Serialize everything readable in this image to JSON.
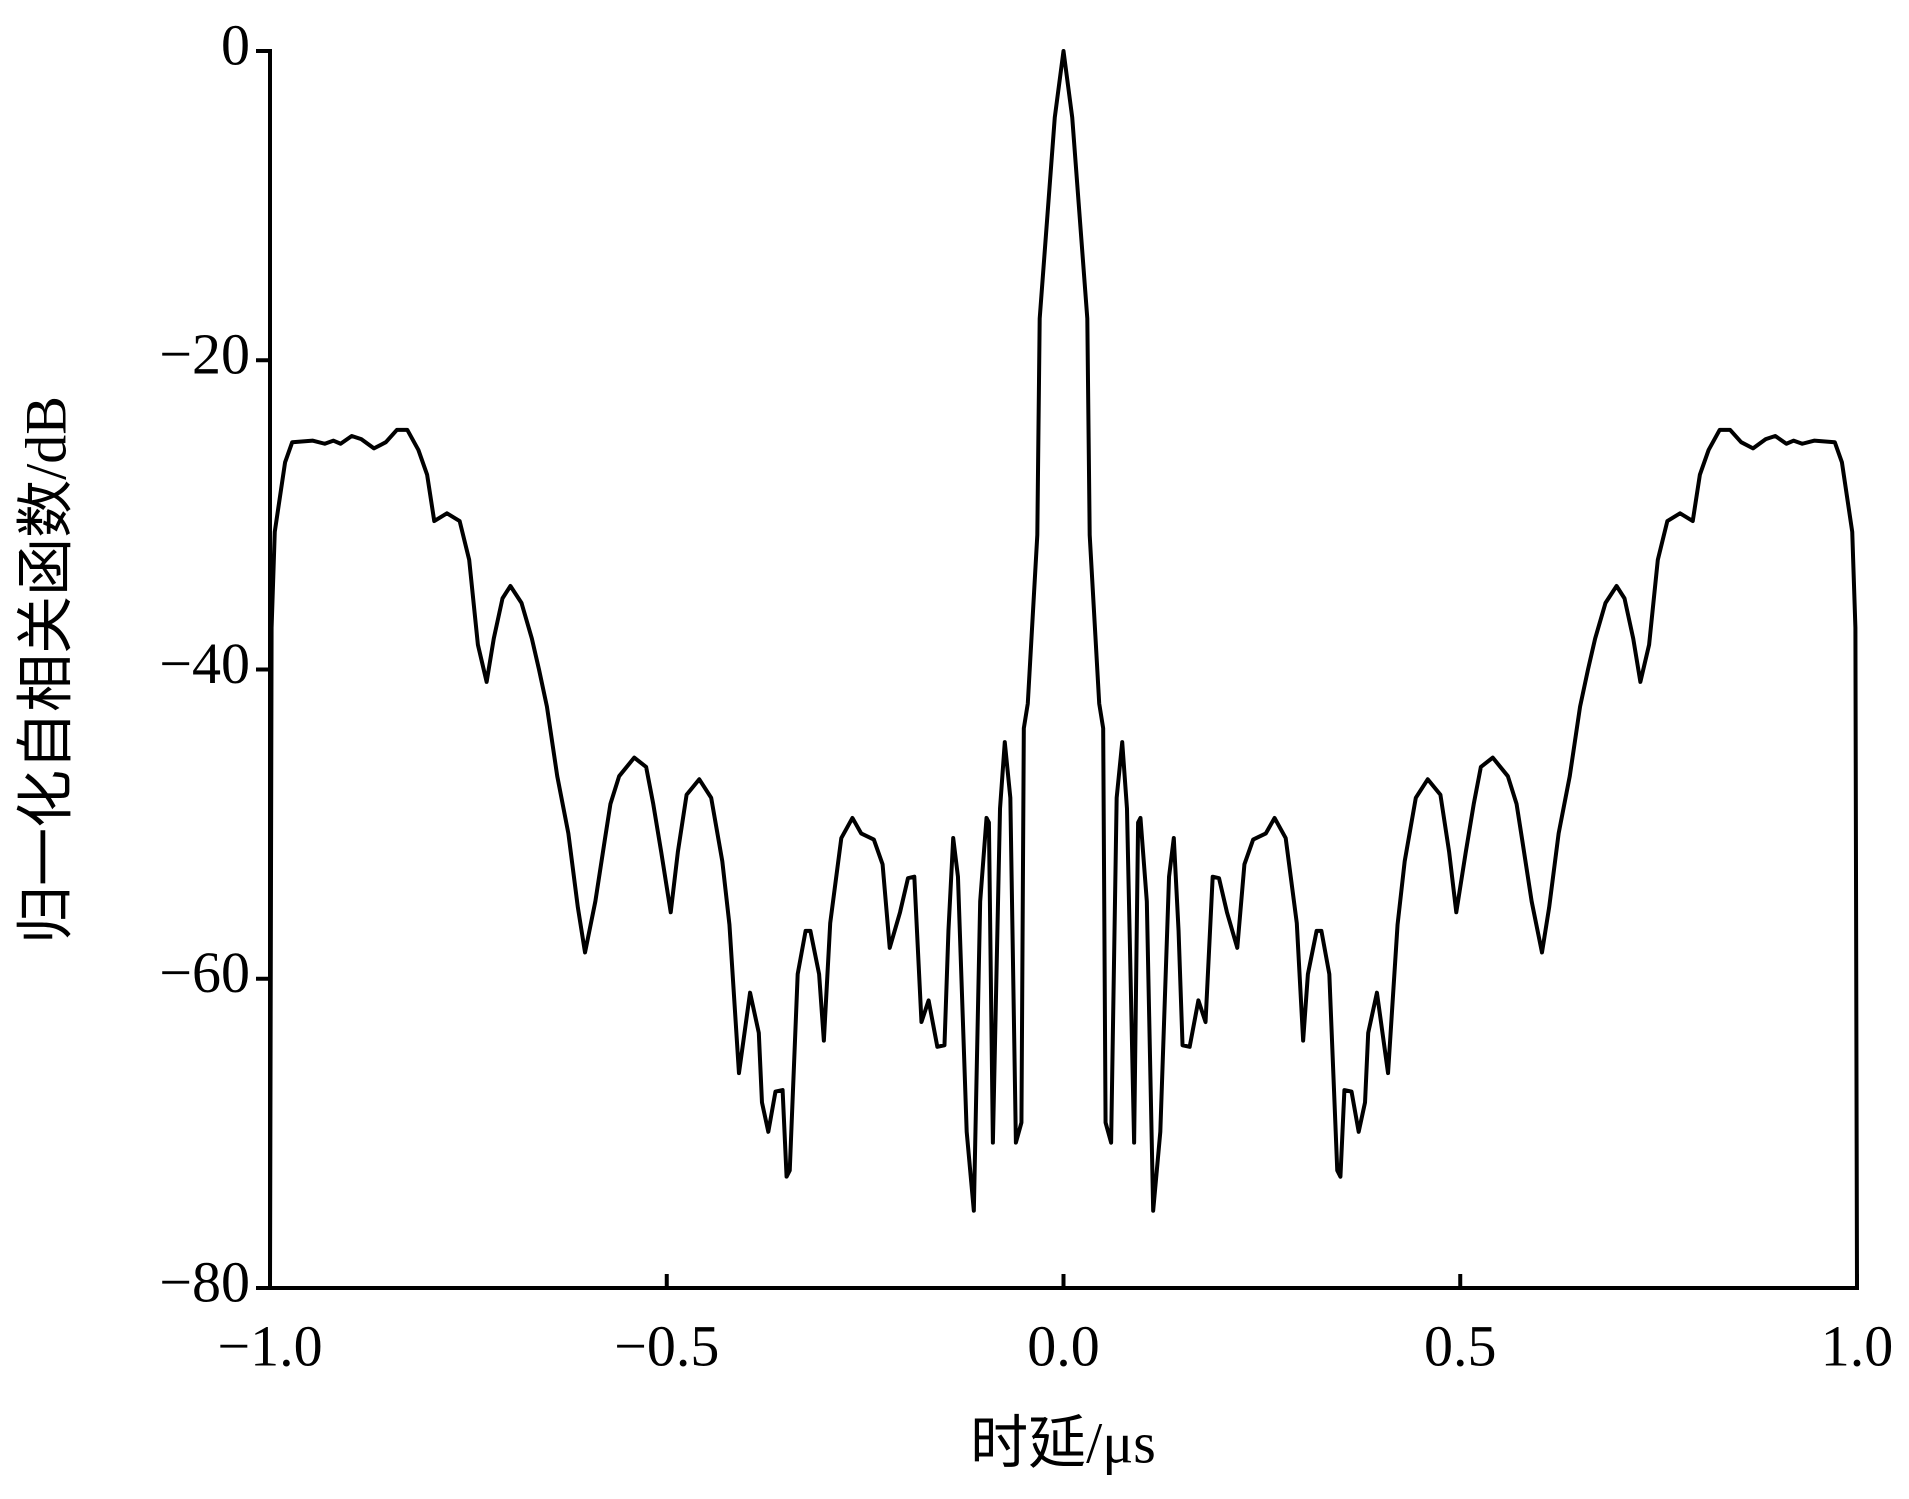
{
  "chart_data": {
    "type": "line",
    "xlabel": "时延/μs",
    "ylabel": "归一化自相关函数/dB",
    "color": "#000000",
    "xlim": [
      -1,
      1
    ],
    "ylim": [
      -80,
      0
    ],
    "xticks": [
      {
        "value": -1,
        "label": "−1.0"
      },
      {
        "value": -0.5,
        "label": "−0.5"
      },
      {
        "value": 0,
        "label": "0.0"
      },
      {
        "value": 0.5,
        "label": "0.5"
      },
      {
        "value": 1,
        "label": "1.0"
      }
    ],
    "yticks": [
      0,
      {
        "value": -20,
        "label": "−20"
      },
      {
        "value": -40,
        "label": "−40"
      },
      {
        "value": -60,
        "label": "−60"
      },
      {
        "value": -80,
        "label": "−80"
      }
    ],
    "x": [
      -1.0,
      -0.998,
      -0.994,
      -0.981,
      -0.972,
      -0.946,
      -0.931,
      -0.92,
      -0.911,
      -0.897,
      -0.885,
      -0.869,
      -0.854,
      -0.84,
      -0.827,
      -0.813,
      -0.802,
      -0.793,
      -0.777,
      -0.761,
      -0.749,
      -0.738,
      -0.727,
      -0.718,
      -0.707,
      -0.697,
      -0.683,
      -0.67,
      -0.661,
      -0.651,
      -0.638,
      -0.624,
      -0.612,
      -0.603,
      -0.59,
      -0.578,
      -0.571,
      -0.56,
      -0.541,
      -0.526,
      -0.517,
      -0.507,
      -0.495,
      -0.486,
      -0.475,
      -0.459,
      -0.444,
      -0.43,
      -0.421,
      -0.409,
      -0.395,
      -0.384,
      -0.38,
      -0.372,
      -0.363,
      -0.354,
      -0.349,
      -0.345,
      -0.335,
      -0.325,
      -0.319,
      -0.308,
      -0.302,
      -0.294,
      -0.28,
      -0.266,
      -0.255,
      -0.239,
      -0.228,
      -0.219,
      -0.206,
      -0.196,
      -0.188,
      -0.179,
      -0.17,
      -0.159,
      -0.15,
      -0.145,
      -0.139,
      -0.133,
      -0.122,
      -0.113,
      -0.105,
      -0.097,
      -0.094,
      -0.089,
      -0.08,
      -0.074,
      -0.067,
      -0.06,
      -0.053,
      -0.05,
      -0.045,
      -0.033,
      -0.03,
      -0.011,
      0,
      0.011,
      0.03,
      0.033,
      0.045,
      0.05,
      0.053,
      0.06,
      0.067,
      0.074,
      0.08,
      0.089,
      0.094,
      0.097,
      0.105,
      0.113,
      0.122,
      0.133,
      0.139,
      0.145,
      0.15,
      0.159,
      0.17,
      0.179,
      0.188,
      0.196,
      0.206,
      0.219,
      0.228,
      0.239,
      0.255,
      0.266,
      0.28,
      0.294,
      0.302,
      0.308,
      0.319,
      0.325,
      0.335,
      0.345,
      0.349,
      0.354,
      0.363,
      0.372,
      0.38,
      0.384,
      0.395,
      0.409,
      0.421,
      0.43,
      0.444,
      0.459,
      0.475,
      0.486,
      0.495,
      0.507,
      0.517,
      0.526,
      0.541,
      0.56,
      0.571,
      0.578,
      0.59,
      0.603,
      0.612,
      0.624,
      0.638,
      0.651,
      0.661,
      0.67,
      0.683,
      0.697,
      0.707,
      0.718,
      0.727,
      0.738,
      0.749,
      0.761,
      0.777,
      0.793,
      0.802,
      0.813,
      0.827,
      0.84,
      0.854,
      0.869,
      0.885,
      0.897,
      0.911,
      0.92,
      0.931,
      0.946,
      0.972,
      0.981,
      0.994,
      0.998,
      1.0
    ],
    "values": [
      -80,
      -37.3,
      -31.1,
      -26.6,
      -25.3,
      -25.2,
      -25.4,
      -25.2,
      -25.4,
      -24.9,
      -25.1,
      -25.7,
      -25.3,
      -24.5,
      -24.5,
      -25.8,
      -27.4,
      -30.4,
      -29.9,
      -30.4,
      -32.9,
      -38.4,
      -40.8,
      -38,
      -35.4,
      -34.6,
      -35.7,
      -38,
      -40,
      -42.4,
      -46.9,
      -50.6,
      -55.4,
      -58.3,
      -55,
      -51,
      -48.7,
      -46.9,
      -45.7,
      -46.3,
      -48.7,
      -51.8,
      -55.7,
      -51.8,
      -48.1,
      -47.1,
      -48.3,
      -52.4,
      -56.5,
      -66.1,
      -60.9,
      -63.5,
      -68,
      -69.9,
      -67.3,
      -67.2,
      -72.8,
      -72.4,
      -59.7,
      -56.9,
      -56.9,
      -59.7,
      -64,
      -56.4,
      -50.9,
      -49.6,
      -50.6,
      -51,
      -52.6,
      -58,
      -55.7,
      -53.5,
      -53.4,
      -62.8,
      -61.4,
      -64.4,
      -64.3,
      -56.9,
      -50.9,
      -53.4,
      -69.9,
      -75,
      -55,
      -49.6,
      -49.9,
      -70.6,
      -49,
      -44.7,
      -48.3,
      -70.6,
      -69.3,
      -43.8,
      -42.2,
      -31.3,
      -17.3,
      -4.3,
      0,
      -4.3,
      -17.3,
      -31.3,
      -42.2,
      -43.8,
      -69.3,
      -70.6,
      -48.3,
      -44.7,
      -49,
      -70.6,
      -49.9,
      -49.6,
      -55,
      -75,
      -69.9,
      -53.4,
      -50.9,
      -56.9,
      -64.3,
      -64.4,
      -61.4,
      -62.8,
      -53.4,
      -53.5,
      -55.7,
      -58,
      -52.6,
      -51,
      -50.6,
      -49.6,
      -50.9,
      -56.4,
      -64,
      -59.7,
      -56.9,
      -56.9,
      -59.7,
      -72.4,
      -72.8,
      -67.2,
      -67.3,
      -69.9,
      -68,
      -63.5,
      -60.9,
      -66.1,
      -56.5,
      -52.4,
      -48.3,
      -47.1,
      -48.1,
      -51.8,
      -55.7,
      -51.8,
      -48.7,
      -46.3,
      -45.7,
      -46.9,
      -48.7,
      -51,
      -55,
      -58.3,
      -55.4,
      -50.6,
      -46.9,
      -42.4,
      -40,
      -38,
      -35.7,
      -34.6,
      -35.4,
      -38,
      -40.8,
      -38.4,
      -32.9,
      -30.4,
      -29.9,
      -30.4,
      -27.4,
      -25.8,
      -24.5,
      -24.5,
      -25.3,
      -25.7,
      -25.1,
      -24.9,
      -25.4,
      -25.2,
      -25.4,
      -25.2,
      -25.3,
      -26.6,
      -31.1,
      -37.3,
      -80
    ]
  }
}
